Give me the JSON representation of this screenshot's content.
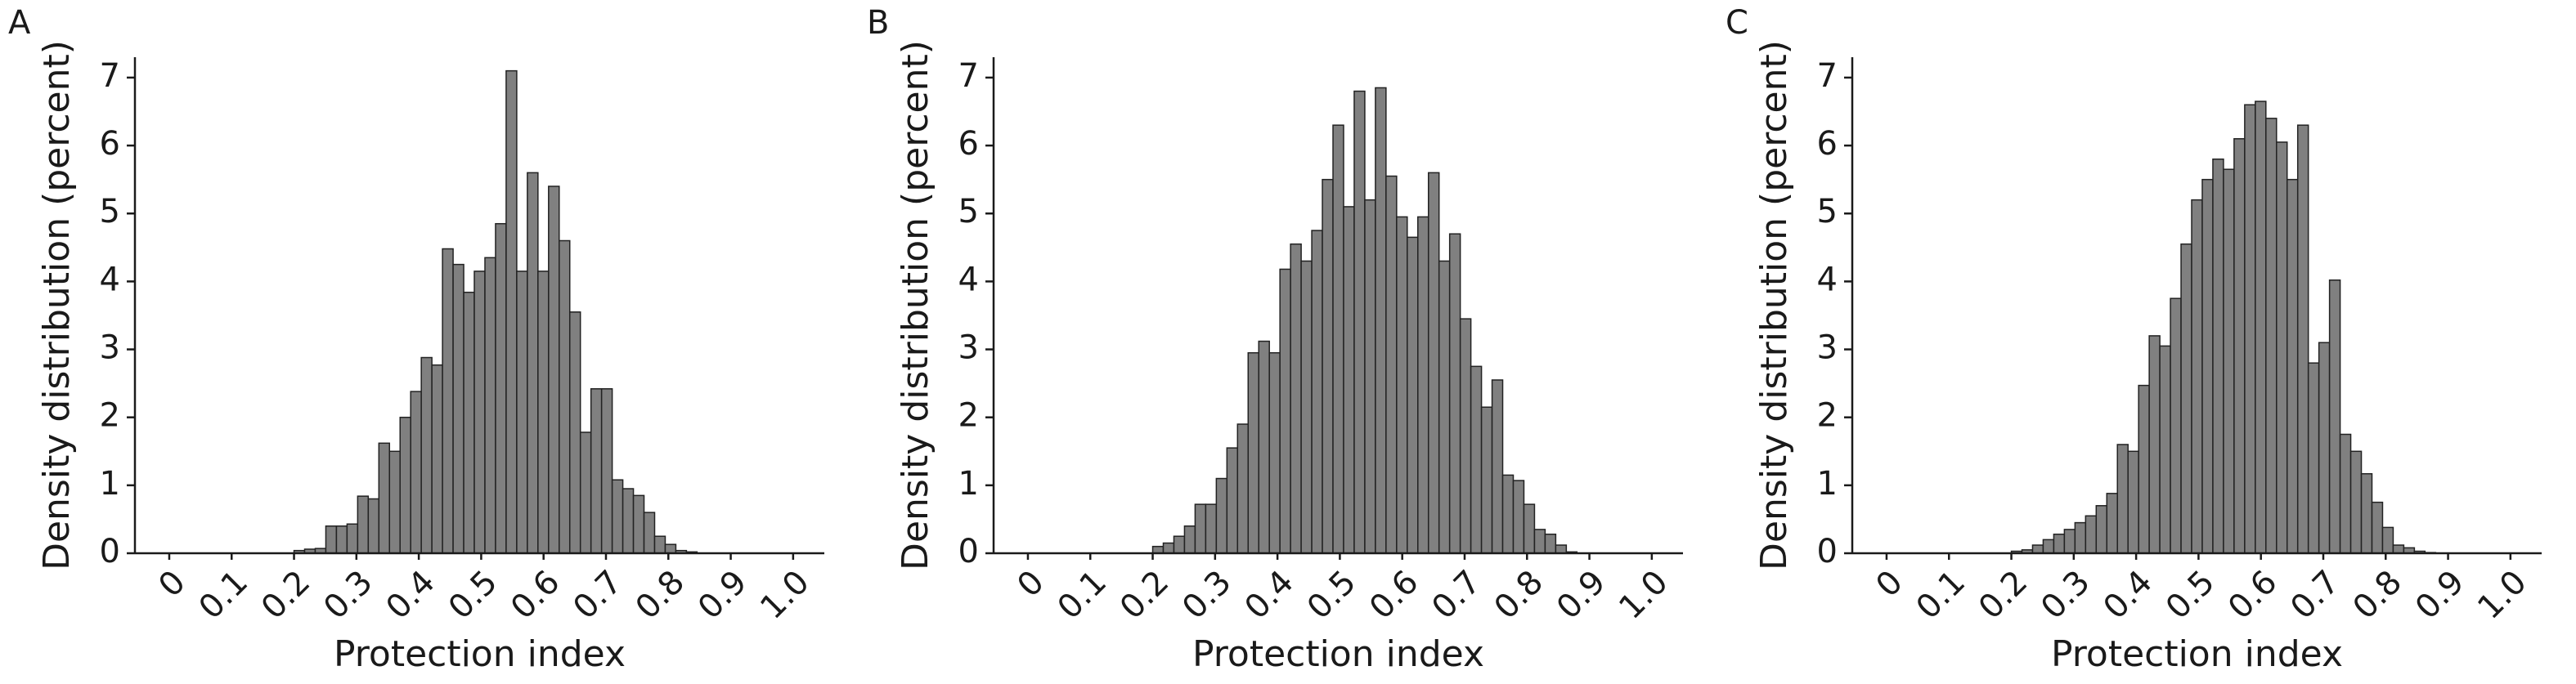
{
  "chart_data": [
    {
      "type": "histogram",
      "panel_label": "A",
      "xlabel": "Protection index",
      "ylabel": "Density distribution (percent)",
      "color": "#808080",
      "bins": [
        0.2,
        0.217,
        0.234,
        0.251,
        0.268,
        0.285,
        0.302,
        0.319,
        0.336,
        0.353,
        0.37,
        0.387,
        0.404,
        0.421,
        0.438,
        0.455,
        0.472,
        0.489,
        0.506,
        0.523,
        0.54,
        0.557,
        0.574,
        0.591,
        0.608,
        0.625,
        0.642,
        0.659,
        0.676,
        0.693,
        0.71,
        0.727,
        0.744,
        0.761,
        0.778,
        0.795,
        0.812,
        0.829,
        0.846,
        0.863,
        0.88
      ],
      "values": [
        0.04,
        0.06,
        0.07,
        0.4,
        0.4,
        0.43,
        0.84,
        0.8,
        1.62,
        1.5,
        2,
        2.38,
        2.88,
        2.77,
        4.48,
        4.25,
        3.84,
        4.15,
        4.35,
        4.85,
        7.1,
        4.15,
        5.6,
        4.15,
        5.4,
        4.6,
        3.55,
        1.78,
        2.42,
        2.42,
        1.08,
        0.95,
        0.85,
        0.6,
        0.25,
        0.13,
        0.04,
        0.02,
        0,
        0
      ],
      "xlim": [
        -0.055,
        1.05
      ],
      "ylim": [
        0,
        7.3
      ],
      "xticks": [
        0,
        0.1,
        0.2,
        0.3,
        0.4,
        0.5,
        0.6,
        0.7,
        0.8,
        0.9,
        {
          "value": 1,
          "label": "1.0"
        }
      ],
      "yticks": [
        0,
        1,
        2,
        3,
        4,
        5,
        6,
        7
      ]
    },
    {
      "type": "histogram",
      "panel_label": "B",
      "xlabel": "Protection index",
      "ylabel": "Density distribution (percent)",
      "color": "#808080",
      "bins": [
        0.2,
        0.217,
        0.234,
        0.251,
        0.268,
        0.285,
        0.302,
        0.319,
        0.336,
        0.353,
        0.37,
        0.387,
        0.404,
        0.421,
        0.438,
        0.455,
        0.472,
        0.489,
        0.506,
        0.523,
        0.54,
        0.557,
        0.574,
        0.591,
        0.608,
        0.625,
        0.642,
        0.659,
        0.676,
        0.693,
        0.71,
        0.727,
        0.744,
        0.761,
        0.778,
        0.795,
        0.812,
        0.829,
        0.846,
        0.863,
        0.88
      ],
      "values": [
        0.1,
        0.15,
        0.25,
        0.4,
        0.72,
        0.72,
        1.1,
        1.55,
        1.9,
        2.95,
        3.12,
        2.95,
        4.18,
        4.55,
        4.3,
        4.75,
        5.5,
        6.3,
        5.1,
        6.8,
        5.2,
        6.85,
        5.55,
        4.95,
        4.65,
        4.95,
        5.6,
        4.3,
        4.7,
        3.45,
        2.75,
        2.15,
        2.55,
        1.15,
        1.07,
        0.72,
        0.35,
        0.28,
        0.12,
        0.02
      ],
      "xlim": [
        -0.055,
        1.05
      ],
      "ylim": [
        0,
        7.3
      ],
      "xticks": [
        0,
        0.1,
        0.2,
        0.3,
        0.4,
        0.5,
        0.6,
        0.7,
        0.8,
        0.9,
        {
          "value": 1,
          "label": "1.0"
        }
      ],
      "yticks": [
        0,
        1,
        2,
        3,
        4,
        5,
        6,
        7
      ]
    },
    {
      "type": "histogram",
      "panel_label": "C",
      "xlabel": "Protection index",
      "ylabel": "Density distribution (percent)",
      "color": "#808080",
      "bins": [
        0.2,
        0.217,
        0.234,
        0.251,
        0.268,
        0.285,
        0.302,
        0.319,
        0.336,
        0.353,
        0.37,
        0.387,
        0.404,
        0.421,
        0.438,
        0.455,
        0.472,
        0.489,
        0.506,
        0.523,
        0.54,
        0.557,
        0.574,
        0.591,
        0.608,
        0.625,
        0.642,
        0.659,
        0.676,
        0.693,
        0.71,
        0.727,
        0.744,
        0.761,
        0.778,
        0.795,
        0.812,
        0.829,
        0.846,
        0.863,
        0.88
      ],
      "values": [
        0.03,
        0.05,
        0.12,
        0.2,
        0.28,
        0.35,
        0.45,
        0.55,
        0.7,
        0.88,
        1.6,
        1.5,
        2.47,
        3.2,
        3.05,
        3.75,
        4.55,
        5.2,
        5.5,
        5.8,
        5.65,
        6.1,
        6.6,
        6.65,
        6.4,
        6.05,
        5.5,
        6.3,
        2.8,
        3.1,
        4.02,
        1.75,
        1.5,
        1.17,
        0.75,
        0.38,
        0.12,
        0.08,
        0.03,
        0.01
      ],
      "xlim": [
        -0.055,
        1.05
      ],
      "ylim": [
        0,
        7.3
      ],
      "xticks": [
        0,
        0.1,
        0.2,
        0.3,
        0.4,
        0.5,
        0.6,
        0.7,
        0.8,
        0.9,
        {
          "value": 1,
          "label": "1.0"
        }
      ],
      "yticks": [
        0,
        1,
        2,
        3,
        4,
        5,
        6,
        7
      ]
    }
  ]
}
